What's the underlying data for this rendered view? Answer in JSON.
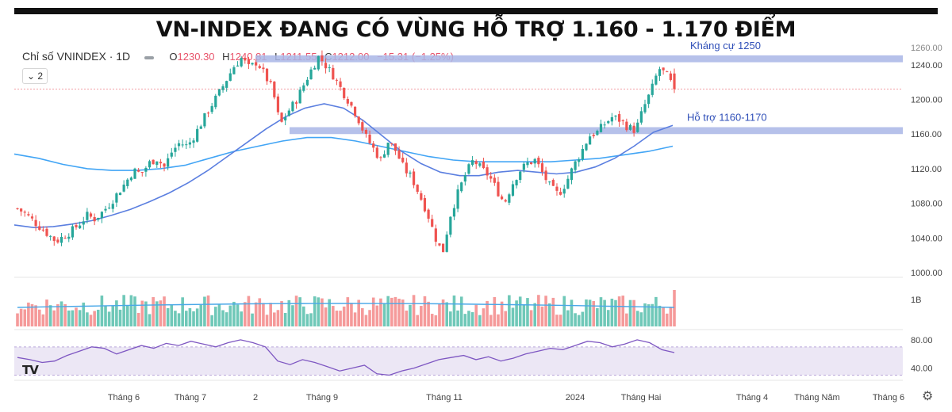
{
  "headline": "VN-INDEX ĐANG CÓ VÙNG HỖ TRỢ 1.160 - 1.170 ĐIỂM",
  "legend": {
    "symbol": "Chỉ số VNINDEX · 1D",
    "o_label": "O",
    "o": "1230.30",
    "h_label": "H",
    "h": "1240.81",
    "l_label": "L",
    "l": "1211.55",
    "c_label": "C",
    "c": "1212.00",
    "change": "−15.31 (−1.25%)",
    "collapse": "⌄ 2"
  },
  "logo": "TV",
  "colors": {
    "up": "#26a69a",
    "down": "#ef5350",
    "ma_fast": "#5b7fe0",
    "ma_slow": "#42a5f5",
    "zone": "#a9b6e6",
    "rsi": "#7e57c2",
    "label": "#2f4fb8"
  },
  "chart_data": [
    {
      "type": "candlestick",
      "title": "VN-INDEX ĐANG CÓ VÙNG HỖ TRỢ 1.160 - 1.170 ĐIỂM",
      "ylim": [
        1000,
        1260
      ],
      "yticks": [
        1000,
        1040,
        1080,
        1120,
        1160,
        1200,
        1240
      ],
      "ytick_labels": [
        "1000.00",
        "1040.00",
        "1080.00",
        "1120.00",
        "1160.00",
        "1200.00",
        "1240.00"
      ],
      "top_tick": "1260.00",
      "close_path": [
        1074,
        1068,
        1060,
        1052,
        1044,
        1036,
        1042,
        1048,
        1056,
        1066,
        1062,
        1070,
        1080,
        1092,
        1104,
        1118,
        1114,
        1126,
        1132,
        1122,
        1140,
        1150,
        1146,
        1160,
        1176,
        1192,
        1206,
        1222,
        1238,
        1248,
        1236,
        1244,
        1228,
        1212,
        1170,
        1186,
        1198,
        1216,
        1234,
        1250,
        1238,
        1226,
        1210,
        1196,
        1180,
        1158,
        1144,
        1130,
        1152,
        1140,
        1120,
        1110,
        1090,
        1070,
        1042,
        1022,
        1066,
        1092,
        1114,
        1130,
        1120,
        1112,
        1096,
        1080,
        1102,
        1118,
        1126,
        1130,
        1114,
        1098,
        1090,
        1104,
        1124,
        1140,
        1158,
        1162,
        1172,
        1180,
        1176,
        1168,
        1164,
        1190,
        1210,
        1236,
        1228,
        1212
      ],
      "ma50": [
        1055,
        1052,
        1053,
        1056,
        1060,
        1066,
        1073,
        1082,
        1092,
        1104,
        1118,
        1134,
        1150,
        1166,
        1180,
        1190,
        1195,
        1190,
        1176,
        1158,
        1140,
        1126,
        1116,
        1112,
        1112,
        1116,
        1118,
        1116,
        1114,
        1116,
        1122,
        1132,
        1146,
        1162,
        1170
      ],
      "ma200": [
        1137,
        1132,
        1125,
        1120,
        1118,
        1118,
        1120,
        1124,
        1132,
        1140,
        1146,
        1152,
        1156,
        1156,
        1152,
        1146,
        1140,
        1134,
        1130,
        1128,
        1128,
        1128,
        1128,
        1130,
        1132,
        1136,
        1140,
        1146
      ],
      "zones": [
        {
          "label": "Kháng cự 1250",
          "from": 1243,
          "to": 1251
        },
        {
          "label": "Hỗ trợ 1160-1170",
          "from": 1160,
          "to": 1168
        }
      ],
      "last_price_line": 1212,
      "volume_label": "1B",
      "rsi": {
        "ylim": [
          25,
          90
        ],
        "yticks": [
          40,
          80
        ],
        "ytick_labels": [
          "40.00",
          "80.00"
        ],
        "band": [
          30,
          70
        ],
        "values": [
          55,
          52,
          48,
          50,
          58,
          64,
          70,
          68,
          60,
          66,
          72,
          68,
          75,
          72,
          78,
          74,
          70,
          76,
          80,
          76,
          70,
          50,
          45,
          52,
          48,
          42,
          36,
          40,
          44,
          32,
          30,
          36,
          40,
          46,
          52,
          55,
          58,
          52,
          56,
          50,
          54,
          60,
          64,
          68,
          66,
          72,
          78,
          76,
          70,
          74,
          80,
          76,
          66,
          62
        ]
      },
      "x_tick_labels": [
        "Tháng 6",
        "Tháng 7",
        "2",
        "Tháng 9",
        "Tháng 11",
        "2024",
        "Tháng Hai",
        "Tháng 4",
        "Tháng Năm",
        "Tháng 6"
      ]
    }
  ]
}
